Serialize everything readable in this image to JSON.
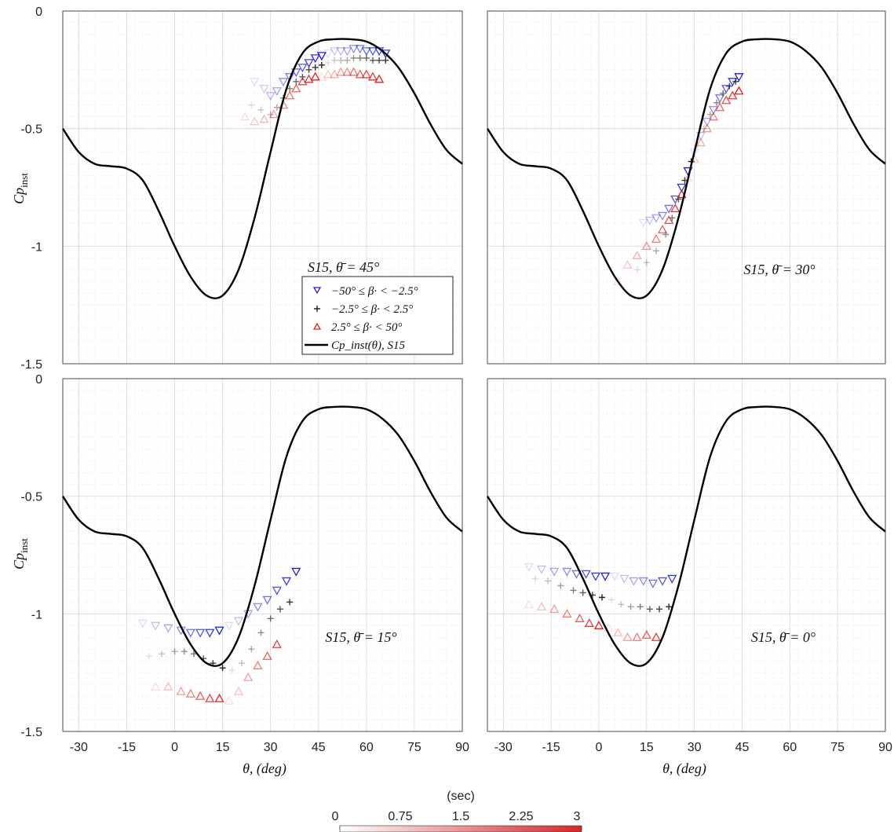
{
  "figure": {
    "panels": [
      {
        "annotation": "S15, θ̄ = 45°"
      },
      {
        "annotation": "S15, θ̄ = 30°"
      },
      {
        "annotation": "S15, θ̄ = 15°"
      },
      {
        "annotation": "S15, θ̄ = 0°"
      }
    ],
    "ylabel": "Cp_inst",
    "xlabel": "θ, (deg)",
    "legend": {
      "title": "S15, θ̄ = 45°",
      "entries": [
        "−50° ≤ β· < −2.5°",
        "−2.5° ≤ β· < 2.5°",
        "2.5° ≤ β· < 50°",
        "Cp_inst(θ), S15"
      ]
    },
    "colorbar": {
      "label": "(sec)",
      "ticks": [
        "0",
        "0.75",
        "1.5",
        "2.25",
        "3"
      ],
      "colors": [
        "#ffffff",
        "#d62728"
      ]
    }
  },
  "chart_data": [
    {
      "type": "scatter",
      "title": "S15, θ̄ = 45°",
      "xlabel": "θ, (deg)",
      "ylabel": "Cp_inst",
      "xlim": [
        -35,
        90
      ],
      "ylim": [
        -1.5,
        0
      ],
      "xticks": [
        "-30",
        "-15",
        "0",
        "15",
        "30",
        "45",
        "60",
        "75",
        "90"
      ],
      "yticks": [
        "0",
        "-0.5",
        "-1",
        "-1.5"
      ],
      "grid": true,
      "legend_position": "bottom-right",
      "reference_curve": {
        "name": "Cp_inst(θ), S15",
        "x": [
          -35,
          -30,
          -25,
          -20,
          -15,
          -10,
          -5,
          0,
          5,
          10,
          15,
          20,
          25,
          30,
          35,
          40,
          45,
          50,
          55,
          60,
          65,
          70,
          75,
          80,
          85,
          90
        ],
        "y": [
          -0.5,
          -0.6,
          -0.65,
          -0.66,
          -0.67,
          -0.72,
          -0.85,
          -1.0,
          -1.13,
          -1.21,
          -1.21,
          -1.1,
          -0.88,
          -0.6,
          -0.33,
          -0.18,
          -0.13,
          -0.12,
          -0.12,
          -0.13,
          -0.17,
          -0.24,
          -0.35,
          -0.48,
          -0.59,
          -0.65
        ]
      },
      "series": [
        {
          "name": "−50° ≤ β· < −2.5°",
          "marker": "down-triangle",
          "color": "#1f1fd6",
          "x": [
            25,
            28,
            30,
            32,
            34,
            36,
            38,
            40,
            42,
            44,
            46,
            48,
            50,
            52,
            54,
            56,
            58,
            60,
            62,
            64,
            66
          ],
          "y": [
            -0.3,
            -0.33,
            -0.36,
            -0.34,
            -0.3,
            -0.28,
            -0.26,
            -0.24,
            -0.22,
            -0.2,
            -0.19,
            -0.18,
            -0.17,
            -0.17,
            -0.17,
            -0.16,
            -0.16,
            -0.17,
            -0.17,
            -0.17,
            -0.18
          ]
        },
        {
          "name": "−2.5° ≤ β· < 2.5°",
          "marker": "plus",
          "color": "#222222",
          "x": [
            24,
            27,
            30,
            32,
            34,
            36,
            38,
            40,
            42,
            44,
            46,
            48,
            50,
            52,
            54,
            56,
            58,
            60,
            62,
            64,
            66
          ],
          "y": [
            -0.4,
            -0.42,
            -0.44,
            -0.41,
            -0.37,
            -0.33,
            -0.3,
            -0.28,
            -0.25,
            -0.24,
            -0.23,
            -0.22,
            -0.21,
            -0.21,
            -0.21,
            -0.2,
            -0.2,
            -0.2,
            -0.21,
            -0.21,
            -0.21
          ]
        },
        {
          "name": "2.5° ≤ β· < 50°",
          "marker": "up-triangle",
          "color": "#e02020",
          "x": [
            22,
            25,
            28,
            31,
            34,
            36,
            38,
            40,
            42,
            44,
            46,
            48,
            50,
            52,
            54,
            56,
            58,
            60,
            62,
            64
          ],
          "y": [
            -0.45,
            -0.47,
            -0.46,
            -0.44,
            -0.4,
            -0.36,
            -0.33,
            -0.3,
            -0.29,
            -0.28,
            -0.28,
            -0.27,
            -0.27,
            -0.26,
            -0.26,
            -0.26,
            -0.27,
            -0.27,
            -0.28,
            -0.29
          ]
        }
      ]
    },
    {
      "type": "scatter",
      "title": "S15, θ̄ = 30°",
      "xlabel": "θ, (deg)",
      "ylabel": "Cp_inst",
      "xlim": [
        -35,
        90
      ],
      "ylim": [
        -1.5,
        0
      ],
      "xticks": [
        "-30",
        "-15",
        "0",
        "15",
        "30",
        "45",
        "60",
        "75",
        "90"
      ],
      "yticks": [
        "0",
        "-0.5",
        "-1",
        "-1.5"
      ],
      "grid": true,
      "reference_curve": {
        "name": "Cp_inst(θ), S15",
        "x": [
          -35,
          -30,
          -25,
          -20,
          -15,
          -10,
          -5,
          0,
          5,
          10,
          15,
          20,
          25,
          30,
          35,
          40,
          45,
          50,
          55,
          60,
          65,
          70,
          75,
          80,
          85,
          90
        ],
        "y": [
          -0.5,
          -0.6,
          -0.65,
          -0.66,
          -0.67,
          -0.72,
          -0.85,
          -1.0,
          -1.13,
          -1.21,
          -1.21,
          -1.1,
          -0.88,
          -0.6,
          -0.33,
          -0.18,
          -0.13,
          -0.12,
          -0.12,
          -0.13,
          -0.17,
          -0.24,
          -0.35,
          -0.48,
          -0.59,
          -0.65
        ]
      },
      "series": [
        {
          "name": "−50° ≤ β· < −2.5°",
          "marker": "down-triangle",
          "color": "#1f1fd6",
          "x": [
            14,
            16,
            18,
            20,
            22,
            24,
            26,
            28,
            30,
            32,
            34,
            36,
            38,
            40,
            42,
            44
          ],
          "y": [
            -0.9,
            -0.89,
            -0.88,
            -0.87,
            -0.84,
            -0.8,
            -0.75,
            -0.68,
            -0.6,
            -0.53,
            -0.47,
            -0.42,
            -0.37,
            -0.33,
            -0.3,
            -0.28
          ]
        },
        {
          "name": "−2.5° ≤ β· < 2.5°",
          "marker": "plus",
          "color": "#222222",
          "x": [
            12,
            15,
            18,
            21,
            23,
            25,
            27,
            29,
            31,
            33,
            35,
            37,
            39,
            41,
            43
          ],
          "y": [
            -1.1,
            -1.07,
            -1.02,
            -0.95,
            -0.88,
            -0.8,
            -0.72,
            -0.64,
            -0.57,
            -0.5,
            -0.44,
            -0.39,
            -0.35,
            -0.32,
            -0.3
          ]
        },
        {
          "name": "2.5° ≤ β· < 50°",
          "marker": "up-triangle",
          "color": "#e02020",
          "x": [
            6,
            9,
            12,
            15,
            18,
            20,
            22,
            24,
            26,
            28,
            30,
            32,
            34,
            36,
            38,
            40,
            42,
            44
          ],
          "y": [
            -1.15,
            -1.08,
            -1.04,
            -1.0,
            -0.97,
            -0.93,
            -0.89,
            -0.84,
            -0.78,
            -0.71,
            -0.63,
            -0.56,
            -0.5,
            -0.45,
            -0.41,
            -0.38,
            -0.36,
            -0.34
          ]
        }
      ]
    },
    {
      "type": "scatter",
      "title": "S15, θ̄ = 15°",
      "xlabel": "θ, (deg)",
      "ylabel": "Cp_inst",
      "xlim": [
        -35,
        90
      ],
      "ylim": [
        -1.5,
        0
      ],
      "xticks": [
        "-30",
        "-15",
        "0",
        "15",
        "30",
        "45",
        "60",
        "75",
        "90"
      ],
      "yticks": [
        "0",
        "-0.5",
        "-1",
        "-1.5"
      ],
      "grid": true,
      "reference_curve": {
        "name": "Cp_inst(θ), S15",
        "x": [
          -35,
          -30,
          -25,
          -20,
          -15,
          -10,
          -5,
          0,
          5,
          10,
          15,
          20,
          25,
          30,
          35,
          40,
          45,
          50,
          55,
          60,
          65,
          70,
          75,
          80,
          85,
          90
        ],
        "y": [
          -0.5,
          -0.6,
          -0.65,
          -0.66,
          -0.67,
          -0.72,
          -0.85,
          -1.0,
          -1.13,
          -1.21,
          -1.21,
          -1.1,
          -0.88,
          -0.6,
          -0.33,
          -0.18,
          -0.13,
          -0.12,
          -0.12,
          -0.13,
          -0.17,
          -0.24,
          -0.35,
          -0.48,
          -0.59,
          -0.65
        ]
      },
      "series": [
        {
          "name": "−50° ≤ β· < −2.5°",
          "marker": "down-triangle",
          "color": "#1f1fd6",
          "x": [
            -10,
            -6,
            -2,
            2,
            5,
            8,
            11,
            14,
            17,
            20,
            23,
            26,
            29,
            32,
            35,
            38
          ],
          "y": [
            -1.04,
            -1.05,
            -1.06,
            -1.07,
            -1.08,
            -1.08,
            -1.08,
            -1.07,
            -1.05,
            -1.03,
            -1.0,
            -0.97,
            -0.94,
            -0.9,
            -0.86,
            -0.82
          ]
        },
        {
          "name": "−2.5° ≤ β· < 2.5°",
          "marker": "plus",
          "color": "#222222",
          "x": [
            -8,
            -4,
            0,
            3,
            6,
            9,
            12,
            15,
            18,
            21,
            24,
            27,
            30,
            33,
            36
          ],
          "y": [
            -1.18,
            -1.17,
            -1.16,
            -1.16,
            -1.17,
            -1.19,
            -1.21,
            -1.23,
            -1.24,
            -1.21,
            -1.15,
            -1.08,
            -1.02,
            -0.98,
            -0.95
          ]
        },
        {
          "name": "2.5° ≤ β· < 50°",
          "marker": "up-triangle",
          "color": "#e02020",
          "x": [
            -6,
            -2,
            2,
            5,
            8,
            11,
            14,
            17,
            20,
            23,
            26,
            29,
            32
          ],
          "y": [
            -1.31,
            -1.31,
            -1.33,
            -1.34,
            -1.35,
            -1.36,
            -1.36,
            -1.37,
            -1.33,
            -1.27,
            -1.22,
            -1.18,
            -1.13
          ]
        }
      ]
    },
    {
      "type": "scatter",
      "title": "S15, θ̄ = 0°",
      "xlabel": "θ, (deg)",
      "ylabel": "Cp_inst",
      "xlim": [
        -35,
        90
      ],
      "ylim": [
        -1.5,
        0
      ],
      "xticks": [
        "-30",
        "-15",
        "0",
        "15",
        "30",
        "45",
        "60",
        "75",
        "90"
      ],
      "yticks": [
        "0",
        "-0.5",
        "-1",
        "-1.5"
      ],
      "grid": true,
      "reference_curve": {
        "name": "Cp_inst(θ), S15",
        "x": [
          -35,
          -30,
          -25,
          -20,
          -15,
          -10,
          -5,
          0,
          5,
          10,
          15,
          20,
          25,
          30,
          35,
          40,
          45,
          50,
          55,
          60,
          65,
          70,
          75,
          80,
          85,
          90
        ],
        "y": [
          -0.5,
          -0.6,
          -0.65,
          -0.66,
          -0.67,
          -0.72,
          -0.85,
          -1.0,
          -1.13,
          -1.21,
          -1.21,
          -1.1,
          -0.88,
          -0.6,
          -0.33,
          -0.18,
          -0.13,
          -0.12,
          -0.12,
          -0.13,
          -0.17,
          -0.24,
          -0.35,
          -0.48,
          -0.59,
          -0.65
        ]
      },
      "series": [
        {
          "name": "−50° ≤ β· < −2.5°",
          "marker": "down-triangle",
          "color": "#1f1fd6",
          "x": [
            -22,
            -18,
            -14,
            -10,
            -7,
            -4,
            -1,
            2,
            5,
            8,
            11,
            14,
            17,
            20,
            23
          ],
          "y": [
            -0.8,
            -0.81,
            -0.82,
            -0.82,
            -0.83,
            -0.83,
            -0.84,
            -0.84,
            -0.84,
            -0.85,
            -0.86,
            -0.86,
            -0.87,
            -0.86,
            -0.85
          ]
        },
        {
          "name": "−2.5° ≤ β· < 2.5°",
          "marker": "plus",
          "color": "#222222",
          "x": [
            -20,
            -16,
            -12,
            -8,
            -5,
            -2,
            1,
            4,
            7,
            10,
            13,
            16,
            19,
            22
          ],
          "y": [
            -0.85,
            -0.86,
            -0.88,
            -0.9,
            -0.91,
            -0.92,
            -0.93,
            -0.94,
            -0.96,
            -0.97,
            -0.97,
            -0.98,
            -0.98,
            -0.97
          ]
        },
        {
          "name": "2.5° ≤ β· < 50°",
          "marker": "up-triangle",
          "color": "#e02020",
          "x": [
            -22,
            -18,
            -14,
            -10,
            -6,
            -3,
            0,
            3,
            6,
            9,
            12,
            15,
            18
          ],
          "y": [
            -0.96,
            -0.97,
            -0.98,
            -1.0,
            -1.02,
            -1.04,
            -1.05,
            -1.06,
            -1.08,
            -1.1,
            -1.1,
            -1.09,
            -1.1
          ]
        }
      ]
    }
  ]
}
